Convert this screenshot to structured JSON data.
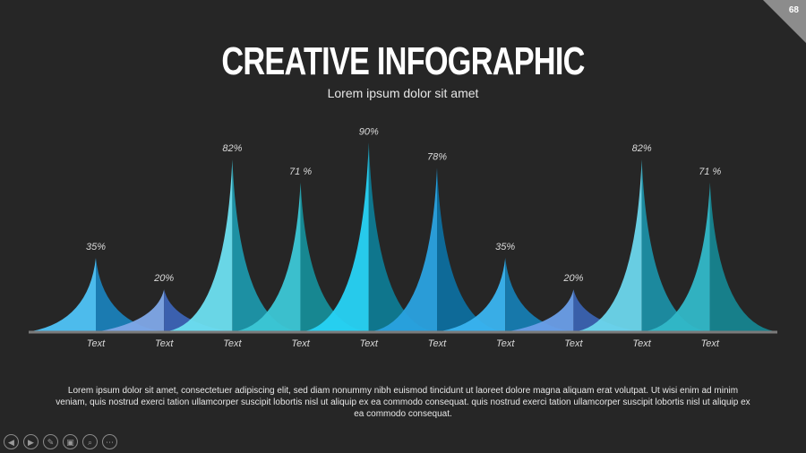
{
  "slide": {
    "page_number": "68",
    "title": "CREATIVE INFOGRAPHIC",
    "subtitle": "Lorem ipsum dolor sit amet",
    "body_text": "Lorem ipsum dolor sit amet, consectetuer adipiscing elit, sed diam nonummy nibh euismod tincidunt ut laoreet dolore magna aliquam erat volutpat. Ut wisi enim ad minim veniam, quis nostrud exerci tation ullamcorper suscipit lobortis nisl ut aliquip ex ea commodo consequat. quis nostrud exerci tation ullamcorper suscipit lobortis nisl ut aliquip ex ea commodo consequat."
  },
  "toolbar": {
    "buttons": [
      {
        "icon": "prev-icon",
        "glyph": "◀"
      },
      {
        "icon": "next-icon",
        "glyph": "▶"
      },
      {
        "icon": "pen-icon",
        "glyph": "✎"
      },
      {
        "icon": "slides-icon",
        "glyph": "▣"
      },
      {
        "icon": "zoom-icon",
        "glyph": "⌕"
      },
      {
        "icon": "more-icon",
        "glyph": "⋯"
      }
    ]
  },
  "chart_data": {
    "type": "area",
    "categories": [
      "Text",
      "Text",
      "Text",
      "Text",
      "Text",
      "Text",
      "Text",
      "Text",
      "Text",
      "Text"
    ],
    "values": [
      35,
      20,
      82,
      71,
      90,
      78,
      35,
      20,
      82,
      71
    ],
    "value_labels": [
      "35%",
      "20%",
      "82%",
      "71 %",
      "90%",
      "78%",
      "35%",
      "20%",
      "82%",
      "71 %"
    ],
    "ylim": [
      0,
      100
    ],
    "colors": [
      "#4fc3f7",
      "#7fa8e8",
      "#6ddff0",
      "#3cc7d6",
      "#27d3f5",
      "#2aa2e0",
      "#3ab4f0",
      "#6a9ee8",
      "#6cd6ec",
      "#31b8c8"
    ],
    "shadow_colors": [
      "#1a7fb8",
      "#3c63b5",
      "#1c96aa",
      "#168c97",
      "#0e7a92",
      "#0d6e9e",
      "#167cb1",
      "#3a62b0",
      "#1b8ea4",
      "#16848f"
    ]
  }
}
